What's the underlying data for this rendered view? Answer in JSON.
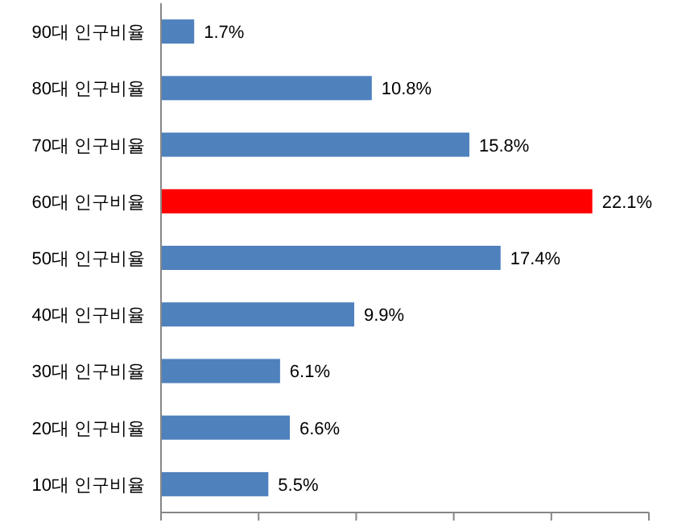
{
  "chart_data": {
    "type": "bar",
    "orientation": "horizontal",
    "categories": [
      "90대 인구비율",
      "80대 인구비율",
      "70대 인구비율",
      "60대 인구비율",
      "50대 인구비율",
      "40대 인구비율",
      "30대 인구비율",
      "20대 인구비율",
      "10대 인구비율"
    ],
    "values": [
      1.7,
      10.8,
      15.8,
      22.1,
      17.4,
      9.9,
      6.1,
      6.6,
      5.5
    ],
    "colors": [
      "#4f81bd",
      "#4f81bd",
      "#4f81bd",
      "#ff0000",
      "#4f81bd",
      "#4f81bd",
      "#4f81bd",
      "#4f81bd",
      "#4f81bd"
    ],
    "value_labels": [
      "1.7%",
      "10.8%",
      "15.8%",
      "22.1%",
      "17.4%",
      "9.9%",
      "6.1%",
      "6.6%",
      "5.5%"
    ],
    "xlim": [
      0,
      25
    ],
    "xticks": [
      {
        "value": 0,
        "label": null
      },
      {
        "value": 5,
        "label": null
      },
      {
        "value": 10,
        "label": null
      },
      {
        "value": 15,
        "label": null
      },
      {
        "value": 20,
        "label": null
      },
      {
        "value": 25,
        "label": null
      }
    ],
    "tick_labels": "y"
  }
}
